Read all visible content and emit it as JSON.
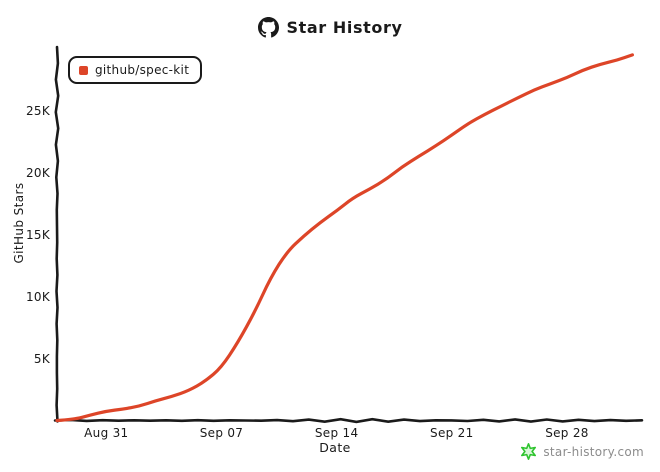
{
  "title": {
    "text": "Star History",
    "icon": "github-logo"
  },
  "legend": {
    "label": "github/spec-kit",
    "marker_color": "#dd4528"
  },
  "watermark": {
    "text": "star-history.com",
    "text_color": "#8c8c8c",
    "star_color": "#2fc42f"
  },
  "chart_data": {
    "type": "line",
    "title": "Star History",
    "xlabel": "Date",
    "ylabel": "GitHub Stars",
    "grid": false,
    "legend_position": "top-left",
    "axis_color": "#1a1a1a",
    "ylim": [
      0,
      30000
    ],
    "x_range": [
      "Aug 28",
      "Oct 02"
    ],
    "y_ticks": [
      {
        "label": "5K",
        "value": 5000
      },
      {
        "label": "10K",
        "value": 10000
      },
      {
        "label": "15K",
        "value": 15000
      },
      {
        "label": "20K",
        "value": 20000
      },
      {
        "label": "25K",
        "value": 25000
      }
    ],
    "x_ticks": [
      "Aug 31",
      "Sep 07",
      "Sep 14",
      "Sep 21",
      "Sep 28"
    ],
    "series": [
      {
        "name": "github/spec-kit",
        "color": "#dd4528",
        "points": [
          [
            "Aug 28",
            0
          ],
          [
            "Aug 29",
            150
          ],
          [
            "Aug 30",
            400
          ],
          [
            "Aug 31",
            700
          ],
          [
            "Sep 01",
            950
          ],
          [
            "Sep 02",
            1200
          ],
          [
            "Sep 03",
            1550
          ],
          [
            "Sep 04",
            1900
          ],
          [
            "Sep 05",
            2450
          ],
          [
            "Sep 06",
            3200
          ],
          [
            "Sep 07",
            4200
          ],
          [
            "Sep 08",
            6300
          ],
          [
            "Sep 09",
            8800
          ],
          [
            "Sep 10",
            11500
          ],
          [
            "Sep 11",
            13600
          ],
          [
            "Sep 12",
            14900
          ],
          [
            "Sep 13",
            16000
          ],
          [
            "Sep 14",
            16900
          ],
          [
            "Sep 15",
            17900
          ],
          [
            "Sep 16",
            18700
          ],
          [
            "Sep 17",
            19500
          ],
          [
            "Sep 18",
            20400
          ],
          [
            "Sep 19",
            21300
          ],
          [
            "Sep 20",
            22200
          ],
          [
            "Sep 21",
            23000
          ],
          [
            "Sep 22",
            23900
          ],
          [
            "Sep 23",
            24700
          ],
          [
            "Sep 24",
            25400
          ],
          [
            "Sep 25",
            26000
          ],
          [
            "Sep 26",
            26600
          ],
          [
            "Sep 27",
            27200
          ],
          [
            "Sep 28",
            27700
          ],
          [
            "Sep 29",
            28200
          ],
          [
            "Sep 30",
            28700
          ],
          [
            "Oct 01",
            29100
          ],
          [
            "Oct 02",
            29500
          ]
        ]
      }
    ]
  }
}
